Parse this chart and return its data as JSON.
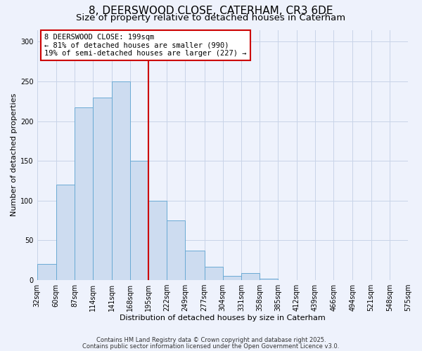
{
  "title": "8, DEERSWOOD CLOSE, CATERHAM, CR3 6DE",
  "subtitle": "Size of property relative to detached houses in Caterham",
  "xlabel": "Distribution of detached houses by size in Caterham",
  "ylabel": "Number of detached properties",
  "bar_color": "#cddcf0",
  "bar_edge_color": "#6aaad4",
  "background_color": "#eef2fc",
  "grid_color": "#c8d4e8",
  "vline_color": "#cc0000",
  "vline_x": 195,
  "annotation_title": "8 DEERSWOOD CLOSE: 199sqm",
  "annotation_line1": "← 81% of detached houses are smaller (990)",
  "annotation_line2": "19% of semi-detached houses are larger (227) →",
  "annotation_box_color": "white",
  "annotation_box_edge_color": "#cc0000",
  "footnote1": "Contains HM Land Registry data © Crown copyright and database right 2025.",
  "footnote2": "Contains public sector information licensed under the Open Government Licence v3.0.",
  "bins": [
    32,
    60,
    87,
    114,
    141,
    168,
    195,
    222,
    249,
    277,
    304,
    331,
    358,
    385,
    412,
    439,
    466,
    494,
    521,
    548,
    575
  ],
  "counts": [
    20,
    120,
    217,
    230,
    250,
    150,
    100,
    75,
    37,
    17,
    5,
    9,
    2,
    0,
    0,
    0,
    0,
    0,
    0,
    0
  ],
  "ylim": [
    0,
    315
  ],
  "yticks": [
    0,
    50,
    100,
    150,
    200,
    250,
    300
  ],
  "title_fontsize": 11,
  "subtitle_fontsize": 9.5,
  "axis_label_fontsize": 8,
  "tick_fontsize": 7,
  "annotation_fontsize": 7.5,
  "footnote_fontsize": 6
}
